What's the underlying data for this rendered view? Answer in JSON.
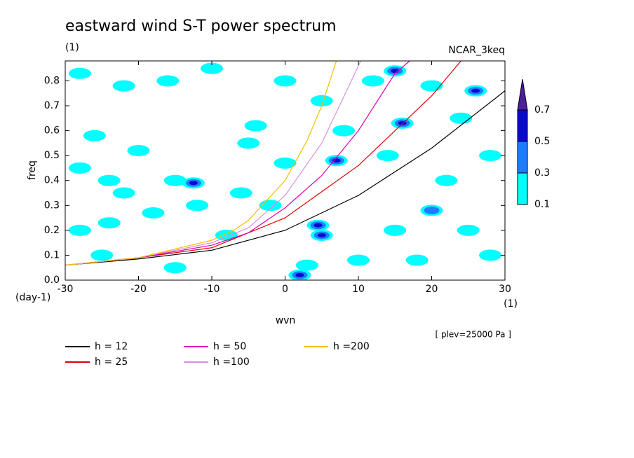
{
  "chart_data": {
    "type": "contour-line",
    "title": "eastward wind S-T power spectrum",
    "subtitle": "(1)",
    "model_label": "NCAR_3keq",
    "x_label": "wvn",
    "y_label": "freq",
    "y_unit": "(day-1)",
    "x_unit": "(1)",
    "annotation": "[ plev=25000 Pa ]",
    "xlim": [
      -30,
      30
    ],
    "ylim": [
      0,
      0.88
    ],
    "xticks": [
      -30,
      -20,
      -10,
      0,
      10,
      20,
      30
    ],
    "yticks": [
      {
        "value": 0,
        "label": "0.0"
      },
      0.1,
      0.2,
      0.3,
      0.4,
      0.5,
      0.6,
      0.7,
      0.8
    ],
    "levels": [
      0.1,
      0.3,
      0.5,
      0.7
    ],
    "level_colors": [
      "#00ffff",
      "#1e7dff",
      "#0a0acd",
      "#4b1e9b"
    ],
    "field": {
      "x": [
        2,
        5,
        4.5,
        -12.5,
        16,
        26,
        15,
        7,
        20,
        -28,
        -22,
        -16,
        -10,
        -26,
        -20,
        -28,
        -22,
        -24,
        -15,
        -18,
        -28,
        -24,
        -12,
        -8,
        -5,
        -2,
        -4,
        0,
        5,
        8,
        12,
        20,
        24,
        28,
        25,
        22,
        15,
        10,
        -15,
        -25,
        28,
        18,
        0,
        -6,
        14,
        3
      ],
      "y": [
        0.02,
        0.18,
        0.22,
        0.39,
        0.63,
        0.76,
        0.84,
        0.48,
        0.28,
        0.83,
        0.78,
        0.8,
        0.85,
        0.58,
        0.52,
        0.45,
        0.35,
        0.4,
        0.4,
        0.27,
        0.2,
        0.23,
        0.3,
        0.18,
        0.55,
        0.3,
        0.62,
        0.47,
        0.72,
        0.6,
        0.8,
        0.78,
        0.65,
        0.5,
        0.2,
        0.4,
        0.2,
        0.08,
        0.05,
        0.1,
        0.1,
        0.08,
        0.8,
        0.35,
        0.5,
        0.06
      ],
      "values": [
        0.55,
        0.55,
        0.5,
        0.5,
        0.5,
        0.5,
        0.5,
        0.5,
        0.35,
        0.2,
        0.2,
        0.2,
        0.2,
        0.2,
        0.2,
        0.2,
        0.2,
        0.2,
        0.2,
        0.2,
        0.2,
        0.2,
        0.2,
        0.2,
        0.2,
        0.2,
        0.2,
        0.2,
        0.2,
        0.2,
        0.2,
        0.2,
        0.2,
        0.2,
        0.2,
        0.2,
        0.2,
        0.2,
        0.2,
        0.2,
        0.2,
        0.2,
        0.2,
        0.2,
        0.2,
        0.2
      ]
    },
    "series": [
      {
        "name": "h = 12",
        "color": "#000000",
        "x": [
          -30,
          -20,
          -10,
          0,
          10,
          20,
          30
        ],
        "values": [
          0.06,
          0.085,
          0.12,
          0.2,
          0.34,
          0.53,
          0.76
        ]
      },
      {
        "name": "h = 25",
        "color": "#e00000",
        "x": [
          -30,
          -20,
          -10,
          0,
          10,
          20,
          24
        ],
        "values": [
          0.06,
          0.09,
          0.13,
          0.25,
          0.46,
          0.74,
          0.88
        ]
      },
      {
        "name": "h = 50",
        "color": "#e000b0",
        "x": [
          -30,
          -20,
          -10,
          -5,
          0,
          5,
          10,
          15,
          17
        ],
        "values": [
          0.06,
          0.09,
          0.14,
          0.19,
          0.29,
          0.42,
          0.6,
          0.83,
          0.88
        ]
      },
      {
        "name": "h =100",
        "color": "#d890e0",
        "x": [
          -30,
          -20,
          -10,
          -5,
          0,
          5,
          10,
          10.3
        ],
        "values": [
          0.06,
          0.09,
          0.15,
          0.21,
          0.34,
          0.55,
          0.86,
          0.88
        ]
      },
      {
        "name": "h =200",
        "color": "#f0c000",
        "x": [
          -30,
          -20,
          -10,
          -7,
          -5,
          0,
          3,
          5,
          7
        ],
        "values": [
          0.06,
          0.09,
          0.16,
          0.2,
          0.24,
          0.4,
          0.56,
          0.7,
          0.88
        ]
      }
    ]
  }
}
